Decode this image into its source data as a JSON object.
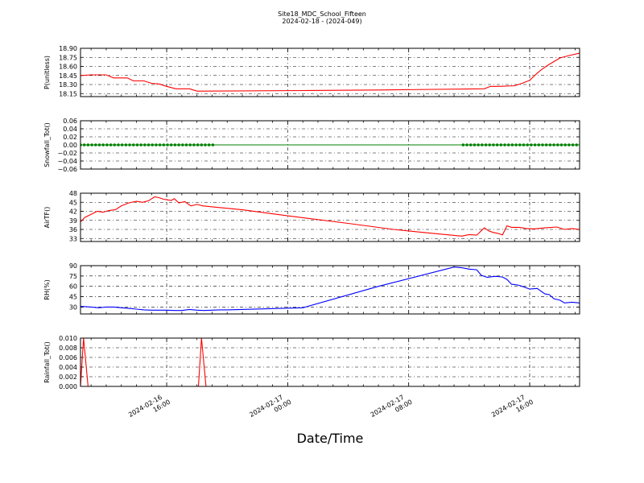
{
  "header": {
    "title": "Site18_MDC_School_Fifteen",
    "subtitle": "2024-02-18 - (2024-049)"
  },
  "x_axis": {
    "label": "Date/Time",
    "tick_labels": [
      {
        "line1": "2024-02-16",
        "line2": "16:00",
        "hour": 16
      },
      {
        "line1": "2024-02-17",
        "line2": "00:00",
        "hour": 24
      },
      {
        "line1": "2024-02-17",
        "line2": "08:00",
        "hour": 32
      },
      {
        "line1": "2024-02-17",
        "line2": "16:00",
        "hour": 40
      }
    ]
  },
  "chart_data": [
    {
      "type": "line",
      "ylabel": "P(unitless)",
      "x_range_hours": [
        10.3,
        43.3
      ],
      "ylim": [
        18.1,
        18.9
      ],
      "yticks": [
        18.15,
        18.3,
        18.45,
        18.6,
        18.75,
        18.9
      ],
      "ytick_labels": [
        "18.15",
        "18.30",
        "18.45",
        "18.60",
        "18.75",
        "18.90"
      ],
      "grid": true,
      "series": [
        {
          "color": "#ff0000",
          "x": [
            10.3,
            11.0,
            11.5,
            12.0,
            12.5,
            13.0,
            13.4,
            13.8,
            14.2,
            14.5,
            15.0,
            15.5,
            16.0,
            16.6,
            17.0,
            17.5,
            18.0,
            25.0,
            30.0,
            37.0,
            37.4,
            38.0,
            39.0,
            39.5,
            40.0,
            40.5,
            40.8,
            41.2,
            41.6,
            42.0,
            42.6,
            43.3
          ],
          "y": [
            18.45,
            18.46,
            18.46,
            18.46,
            18.41,
            18.41,
            18.41,
            18.36,
            18.36,
            18.36,
            18.32,
            18.31,
            18.27,
            18.23,
            18.23,
            18.23,
            18.19,
            18.2,
            18.21,
            18.23,
            18.27,
            18.27,
            18.28,
            18.32,
            18.37,
            18.49,
            18.55,
            18.62,
            18.68,
            18.74,
            18.78,
            18.82
          ]
        }
      ]
    },
    {
      "type": "line",
      "ylabel": "Snowfall_Tot()",
      "x_range_hours": [
        10.3,
        43.3
      ],
      "ylim": [
        -0.06,
        0.06
      ],
      "yticks": [
        -0.06,
        -0.04,
        -0.02,
        0.0,
        0.02,
        0.04,
        0.06
      ],
      "ytick_labels": [
        "−0.06",
        "−0.04",
        "−0.02",
        "0.00",
        "0.02",
        "0.04",
        "0.06"
      ],
      "grid": true,
      "series": [
        {
          "color": "#008000",
          "x": [
            10.3,
            43.3
          ],
          "y": [
            0.0,
            0.0
          ],
          "markers_x_ranges": [
            [
              10.3,
              19.1
            ],
            [
              35.6,
              43.3
            ]
          ]
        }
      ]
    },
    {
      "type": "line",
      "ylabel": "AirTF()",
      "x_range_hours": [
        10.3,
        43.3
      ],
      "ylim": [
        32,
        48
      ],
      "yticks": [
        33,
        36,
        39,
        42,
        45,
        48
      ],
      "ytick_labels": [
        "33",
        "36",
        "39",
        "42",
        "45",
        "48"
      ],
      "grid": true,
      "series": [
        {
          "color": "#ff0000",
          "x": [
            10.3,
            10.6,
            11.0,
            11.4,
            11.8,
            12.2,
            12.6,
            13.0,
            13.5,
            14.0,
            14.4,
            14.8,
            15.2,
            15.5,
            15.8,
            16.3,
            16.5,
            16.8,
            17.2,
            17.6,
            18.0,
            18.4,
            19.0,
            21.0,
            24.0,
            28.0,
            31.0,
            33.0,
            35.5,
            36.0,
            36.5,
            37.0,
            37.3,
            37.6,
            37.9,
            38.2,
            38.5,
            38.8,
            39.3,
            39.8,
            40.3,
            41.0,
            41.8,
            42.3,
            42.8,
            43.3
          ],
          "y": [
            38.5,
            40.0,
            41.0,
            42.0,
            41.7,
            42.3,
            42.5,
            43.8,
            44.8,
            45.3,
            45.0,
            45.5,
            46.8,
            46.5,
            46.0,
            45.6,
            46.2,
            44.8,
            45.2,
            43.8,
            44.3,
            43.8,
            43.5,
            42.5,
            40.5,
            38.0,
            36.0,
            35.0,
            33.8,
            34.3,
            34.1,
            36.5,
            35.5,
            35.0,
            34.7,
            34.2,
            37.2,
            36.7,
            36.7,
            36.3,
            36.2,
            36.5,
            36.8,
            36.0,
            36.3,
            36.0
          ]
        }
      ]
    },
    {
      "type": "line",
      "ylabel": "RH(%)",
      "x_range_hours": [
        10.3,
        43.3
      ],
      "ylim": [
        20,
        90
      ],
      "yticks": [
        30,
        45,
        60,
        75,
        90
      ],
      "ytick_labels": [
        "30",
        "45",
        "60",
        "75",
        "90"
      ],
      "grid": true,
      "series": [
        {
          "color": "#0000ff",
          "x": [
            10.3,
            11.0,
            11.5,
            12.0,
            12.5,
            13.0,
            13.5,
            14.0,
            14.5,
            15.0,
            15.5,
            16.0,
            16.5,
            17.0,
            17.5,
            18.0,
            18.5,
            19.0,
            19.5,
            20.0,
            25.0,
            30.0,
            35.0,
            35.5,
            36.0,
            36.5,
            36.8,
            37.2,
            37.5,
            37.8,
            38.2,
            38.5,
            38.8,
            39.2,
            39.5,
            40.0,
            40.5,
            41.0,
            41.3,
            41.6,
            42.0,
            42.3,
            42.8,
            43.3
          ],
          "y": [
            31,
            30,
            29,
            30,
            30,
            29,
            28,
            27,
            26,
            25.5,
            25.5,
            25.5,
            25.0,
            25.0,
            26.5,
            25.5,
            25.0,
            25.5,
            26.0,
            26.0,
            29.0,
            60.0,
            88.0,
            87.0,
            85.0,
            84.0,
            76.0,
            73.0,
            74.0,
            74.5,
            73.5,
            70.0,
            63.0,
            62.0,
            60.0,
            56.0,
            57.0,
            49.0,
            48.0,
            42.0,
            40.0,
            36.0,
            37.0,
            36.0
          ]
        }
      ]
    },
    {
      "type": "line",
      "ylabel": "Rainfall_Tot()",
      "x_range_hours": [
        10.3,
        43.3
      ],
      "ylim": [
        0.0,
        0.01
      ],
      "yticks": [
        0.0,
        0.002,
        0.004,
        0.006,
        0.008,
        0.01
      ],
      "ytick_labels": [
        "0.000",
        "0.002",
        "0.004",
        "0.006",
        "0.008",
        "0.010"
      ],
      "grid": true,
      "series": [
        {
          "color": "#ff0000",
          "x": [
            10.3,
            10.5,
            10.8,
            18.1,
            18.3,
            18.6,
            43.3
          ],
          "y": [
            0.0,
            0.01,
            0.0,
            0.0,
            0.01,
            0.0,
            0.0
          ]
        }
      ]
    }
  ]
}
